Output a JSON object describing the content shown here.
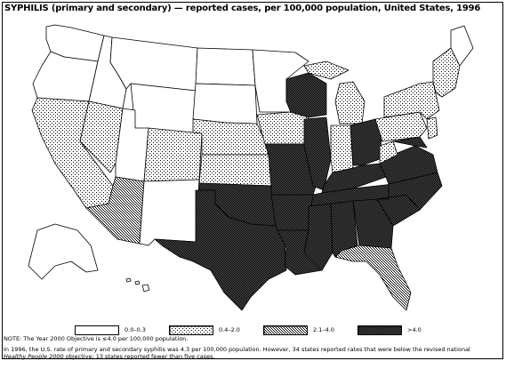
{
  "title": "SYPHILIS (primary and secondary) — reported cases, per 100,000 population, United States, 1996",
  "legend": [
    {
      "label": "0.0–0.3",
      "pattern": "white"
    },
    {
      "label": "0.4–2.0",
      "pattern": "light-dots"
    },
    {
      "label": "2.1–4.0",
      "pattern": "medium-dots"
    },
    {
      "label": ">4.0",
      "pattern": "dark-hatch"
    }
  ],
  "note": "NOTE: The Year 2000 Objective is ≤4.0 per 100,000 population.",
  "footer": {
    "line1": "In 1996, the U.S. rate of primary and secondary syphilis was 4.3 per 100,000 population. However, 34 states reported rates that were below the revised national",
    "line2_italic": "Healthy People 2000",
    "line2_rest": " objective; 13 states reported fewer than five cases."
  },
  "categories": {
    "white": "0.0–0.3",
    "light": "0.4–2.0",
    "medium": "2.1–4.0",
    "dark": ">4.0"
  },
  "colors": {
    "border": "#000000",
    "background": "#ffffff"
  }
}
